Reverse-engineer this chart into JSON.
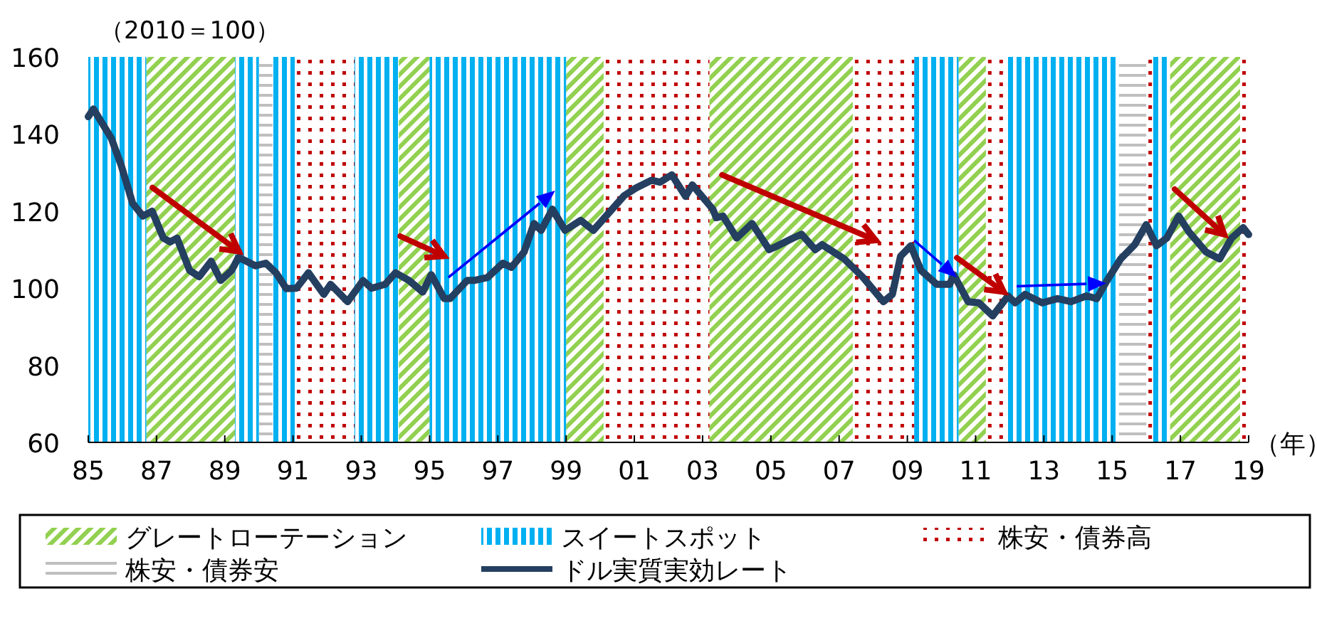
{
  "chart_data": {
    "type": "line",
    "ylabel": "（2010＝100）",
    "xlabel": "（年）",
    "xlim": [
      1985,
      2019
    ],
    "ylim": [
      60,
      160
    ],
    "yticks": [
      60,
      80,
      100,
      120,
      140,
      160
    ],
    "xticks": [
      {
        "value": 1985,
        "label": "85"
      },
      {
        "value": 1987,
        "label": "87"
      },
      {
        "value": 1989,
        "label": "89"
      },
      {
        "value": 1991,
        "label": "91"
      },
      {
        "value": 1993,
        "label": "93"
      },
      {
        "value": 1995,
        "label": "95"
      },
      {
        "value": 1997,
        "label": "97"
      },
      {
        "value": 1999,
        "label": "99"
      },
      {
        "value": 2001,
        "label": "01"
      },
      {
        "value": 2003,
        "label": "03"
      },
      {
        "value": 2005,
        "label": "05"
      },
      {
        "value": 2007,
        "label": "07"
      },
      {
        "value": 2009,
        "label": "09"
      },
      {
        "value": 2011,
        "label": "11"
      },
      {
        "value": 2013,
        "label": "13"
      },
      {
        "value": 2015,
        "label": "15"
      },
      {
        "value": 2017,
        "label": "17"
      },
      {
        "value": 2019,
        "label": "19"
      }
    ],
    "grid": false,
    "legend": "bottom",
    "series": [
      {
        "name": "ドル実質実効レート",
        "color": "#243f60",
        "x": [
          1985.0,
          1985.15,
          1985.67,
          1985.96,
          1986.3,
          1986.6,
          1986.87,
          1987.2,
          1987.4,
          1987.6,
          1987.97,
          1988.25,
          1988.6,
          1988.88,
          1989.2,
          1989.4,
          1989.9,
          1990.2,
          1990.5,
          1990.8,
          1991.1,
          1991.45,
          1991.9,
          1992.1,
          1992.6,
          1993.05,
          1993.3,
          1993.7,
          1994.0,
          1994.4,
          1994.8,
          1995.05,
          1995.43,
          1995.6,
          1996.1,
          1996.3,
          1996.7,
          1997.15,
          1997.4,
          1997.77,
          1998.06,
          1998.27,
          1998.6,
          1998.97,
          1999.43,
          1999.8,
          2000.35,
          2000.7,
          2001.05,
          2001.5,
          2001.75,
          2002.1,
          2002.5,
          2002.7,
          2003.3,
          2003.4,
          2003.6,
          2004.0,
          2004.45,
          2004.95,
          2005.2,
          2005.65,
          2005.9,
          2006.3,
          2006.5,
          2007.15,
          2007.7,
          2008.3,
          2008.56,
          2008.8,
          2009.1,
          2009.4,
          2009.86,
          2010.24,
          2010.36,
          2010.78,
          2011.1,
          2011.5,
          2011.95,
          2012.16,
          2012.45,
          2012.95,
          2013.4,
          2013.8,
          2014.25,
          2014.55,
          2014.83,
          2015.25,
          2015.66,
          2016.0,
          2016.3,
          2016.6,
          2016.95,
          2017.25,
          2017.75,
          2018.15,
          2018.5,
          2018.84,
          2019.0
        ],
        "values": [
          144.5,
          146.5,
          139,
          132,
          122,
          118.7,
          120,
          113,
          112,
          113,
          104.6,
          103,
          107,
          102,
          104.6,
          108,
          105.8,
          106.5,
          104,
          99.9,
          100,
          104,
          98.4,
          101,
          96.5,
          102,
          100,
          101,
          104,
          102,
          99,
          103.5,
          97.3,
          97.3,
          102,
          102,
          102.8,
          106.5,
          105.4,
          109.4,
          116.8,
          115,
          120.5,
          115,
          117.6,
          115,
          120.5,
          124,
          126,
          128,
          127.5,
          129.4,
          123.8,
          126.8,
          120.5,
          118.3,
          118.7,
          113,
          116.8,
          110,
          111,
          113,
          114,
          110,
          111.3,
          107.6,
          102.8,
          96.5,
          98.4,
          108.3,
          111,
          104.6,
          101,
          101,
          103.5,
          96.5,
          96.2,
          92.8,
          98,
          96.2,
          98.4,
          96.2,
          97.3,
          96.5,
          98,
          97.3,
          101.7,
          107.6,
          111.3,
          116.5,
          111,
          113,
          118.7,
          114.6,
          109.4,
          107.6,
          113,
          115.7,
          113.9
        ]
      }
    ],
    "bands": [
      {
        "axis": "x",
        "from": 1986.7,
        "to": 1989.3,
        "label": "グレートローテーション",
        "color": "#92d050"
      },
      {
        "axis": "x",
        "from": 1994.1,
        "to": 1995.0,
        "color": "#92d050"
      },
      {
        "axis": "x",
        "from": 1999.0,
        "to": 2000.1,
        "color": "#92d050"
      },
      {
        "axis": "x",
        "from": 2003.2,
        "to": 2007.4,
        "color": "#92d050"
      },
      {
        "axis": "x",
        "from": 2010.5,
        "to": 2011.3,
        "color": "#92d050"
      },
      {
        "axis": "x",
        "from": 2016.7,
        "to": 2018.75,
        "color": "#92d050"
      },
      {
        "axis": "x",
        "from": 1985.0,
        "to": 1986.7,
        "label": "スイートスポット",
        "color": "#00b0f0"
      },
      {
        "axis": "x",
        "from": 1989.3,
        "to": 1990.0,
        "color": "#00b0f0"
      },
      {
        "axis": "x",
        "from": 1990.4,
        "to": 1991.05,
        "color": "#00b0f0"
      },
      {
        "axis": "x",
        "from": 1992.8,
        "to": 1994.1,
        "color": "#00b0f0"
      },
      {
        "axis": "x",
        "from": 1995.0,
        "to": 1999.0,
        "color": "#00b0f0"
      },
      {
        "axis": "x",
        "from": 2009.2,
        "to": 2010.5,
        "color": "#00b0f0"
      },
      {
        "axis": "x",
        "from": 2011.9,
        "to": 2015.2,
        "color": "#00b0f0"
      },
      {
        "axis": "x",
        "from": 2016.2,
        "to": 2016.7,
        "color": "#00b0f0"
      },
      {
        "axis": "x",
        "from": 1991.05,
        "to": 1992.8,
        "label": "株安・債券高",
        "color": "#c00000"
      },
      {
        "axis": "x",
        "from": 2000.1,
        "to": 2003.2,
        "color": "#c00000"
      },
      {
        "axis": "x",
        "from": 2007.4,
        "to": 2009.2,
        "color": "#c00000"
      },
      {
        "axis": "x",
        "from": 2011.3,
        "to": 2011.9,
        "color": "#c00000"
      },
      {
        "axis": "x",
        "from": 2016.0,
        "to": 2016.2,
        "color": "#c00000"
      },
      {
        "axis": "x",
        "from": 2018.75,
        "to": 2019.0,
        "color": "#c00000"
      },
      {
        "axis": "x",
        "from": 1990.0,
        "to": 1990.4,
        "label": "株安・債券安",
        "color": "#bfbfbf"
      },
      {
        "axis": "x",
        "from": 2015.2,
        "to": 2016.0,
        "color": "#bfbfbf"
      }
    ]
  }
}
